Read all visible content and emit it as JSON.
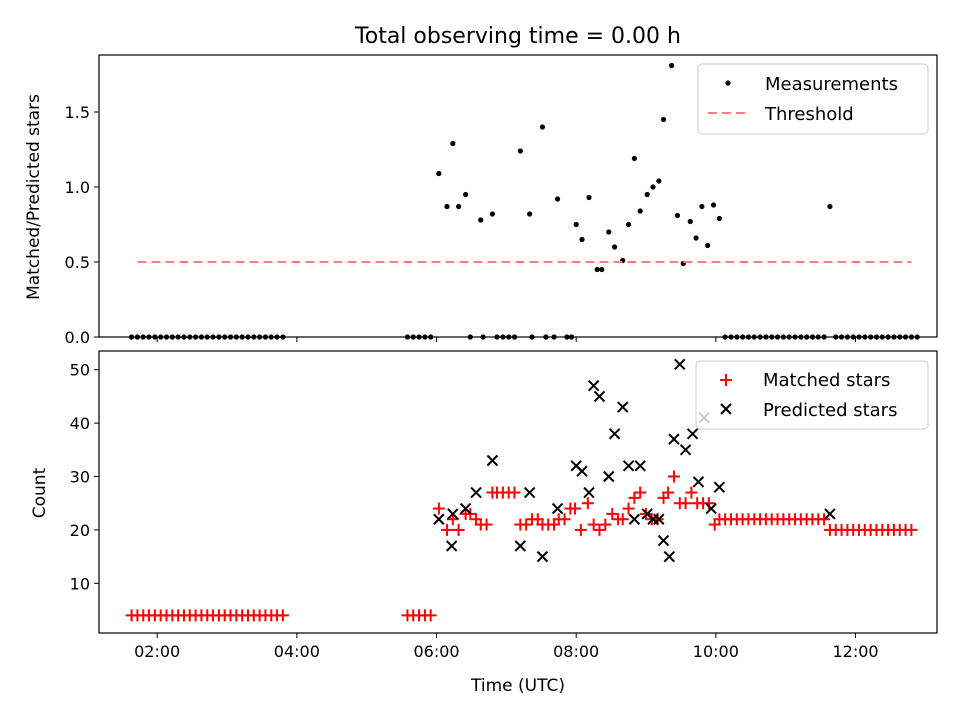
{
  "chart_data": [
    {
      "type": "scatter",
      "title": "Total observing time = 0.00 h",
      "xlabel": "",
      "ylabel": "Matched/Predicted stars",
      "xlim": [
        "01:10",
        "13:10"
      ],
      "ylim": [
        0,
        1.88
      ],
      "yticks": [
        "0.0",
        "0.5",
        "1.0",
        "1.5"
      ],
      "xticks": [
        "02:00",
        "04:00",
        "06:00",
        "08:00",
        "10:00",
        "12:00"
      ],
      "grid": false,
      "legend_position": "upper right",
      "series": [
        {
          "name": "Measurements",
          "marker": "dot",
          "color": "#000000",
          "points": [
            [
              "01:38",
              0
            ],
            [
              "01:43",
              0
            ],
            [
              "01:48",
              0
            ],
            [
              "01:53",
              0
            ],
            [
              "01:58",
              0
            ],
            [
              "02:03",
              0
            ],
            [
              "02:08",
              0
            ],
            [
              "02:13",
              0
            ],
            [
              "02:18",
              0
            ],
            [
              "02:23",
              0
            ],
            [
              "02:28",
              0
            ],
            [
              "02:33",
              0
            ],
            [
              "02:38",
              0
            ],
            [
              "02:43",
              0
            ],
            [
              "02:48",
              0
            ],
            [
              "02:53",
              0
            ],
            [
              "02:58",
              0
            ],
            [
              "03:03",
              0
            ],
            [
              "03:08",
              0
            ],
            [
              "03:13",
              0
            ],
            [
              "03:18",
              0
            ],
            [
              "03:23",
              0
            ],
            [
              "03:28",
              0
            ],
            [
              "03:33",
              0
            ],
            [
              "03:38",
              0
            ],
            [
              "03:43",
              0
            ],
            [
              "03:48",
              0
            ],
            [
              "05:35",
              0
            ],
            [
              "05:40",
              0
            ],
            [
              "05:45",
              0
            ],
            [
              "05:50",
              0
            ],
            [
              "05:55",
              0
            ],
            [
              "06:02",
              1.09
            ],
            [
              "06:09",
              0.87
            ],
            [
              "06:14",
              1.29
            ],
            [
              "06:19",
              0.87
            ],
            [
              "06:25",
              0.95
            ],
            [
              "06:29",
              0
            ],
            [
              "06:38",
              0.78
            ],
            [
              "06:40",
              0
            ],
            [
              "06:48",
              0.82
            ],
            [
              "06:52",
              0
            ],
            [
              "06:57",
              0
            ],
            [
              "07:02",
              0
            ],
            [
              "07:07",
              0
            ],
            [
              "07:12",
              1.24
            ],
            [
              "07:20",
              0.82
            ],
            [
              "07:22",
              0
            ],
            [
              "07:31",
              1.4
            ],
            [
              "07:34",
              0
            ],
            [
              "07:41",
              0
            ],
            [
              "07:44",
              0.92
            ],
            [
              "07:52",
              0
            ],
            [
              "07:56",
              0
            ],
            [
              "08:00",
              0.75
            ],
            [
              "08:05",
              0.65
            ],
            [
              "08:11",
              0.93
            ],
            [
              "08:18",
              0.45
            ],
            [
              "08:22",
              0.45
            ],
            [
              "08:28",
              0.7
            ],
            [
              "08:33",
              0.6
            ],
            [
              "08:40",
              0.51
            ],
            [
              "08:45",
              0.75
            ],
            [
              "08:50",
              1.19
            ],
            [
              "08:55",
              0.84
            ],
            [
              "09:01",
              0.95
            ],
            [
              "09:06",
              1.0
            ],
            [
              "09:11",
              1.04
            ],
            [
              "09:15",
              1.45
            ],
            [
              "09:22",
              1.81
            ],
            [
              "09:27",
              0.81
            ],
            [
              "09:32",
              0.49
            ],
            [
              "09:38",
              0.77
            ],
            [
              "09:43",
              0.66
            ],
            [
              "09:48",
              0.87
            ],
            [
              "09:53",
              0.61
            ],
            [
              "09:58",
              0.88
            ],
            [
              "10:03",
              0.79
            ],
            [
              "10:08",
              0
            ],
            [
              "10:13",
              0
            ],
            [
              "10:18",
              0
            ],
            [
              "10:23",
              0
            ],
            [
              "10:28",
              0
            ],
            [
              "10:33",
              0
            ],
            [
              "10:38",
              0
            ],
            [
              "10:43",
              0
            ],
            [
              "10:48",
              0
            ],
            [
              "10:53",
              0
            ],
            [
              "10:58",
              0
            ],
            [
              "11:03",
              0
            ],
            [
              "11:08",
              0
            ],
            [
              "11:13",
              0
            ],
            [
              "11:18",
              0
            ],
            [
              "11:23",
              0
            ],
            [
              "11:28",
              0
            ],
            [
              "11:33",
              0
            ],
            [
              "11:38",
              0.87
            ],
            [
              "11:43",
              0
            ],
            [
              "11:48",
              0
            ],
            [
              "11:53",
              0
            ],
            [
              "11:58",
              0
            ],
            [
              "12:03",
              0
            ],
            [
              "12:08",
              0
            ],
            [
              "12:13",
              0
            ],
            [
              "12:18",
              0
            ],
            [
              "12:23",
              0
            ],
            [
              "12:28",
              0
            ],
            [
              "12:33",
              0
            ],
            [
              "12:38",
              0
            ],
            [
              "12:43",
              0
            ],
            [
              "12:48",
              0
            ],
            [
              "12:53",
              0
            ]
          ]
        },
        {
          "name": "Threshold",
          "marker": "dashed-line",
          "color": "#ff7f7f",
          "points": [
            [
              "01:43",
              0.5
            ],
            [
              "12:48",
              0.5
            ]
          ]
        }
      ]
    },
    {
      "type": "scatter",
      "title": "",
      "xlabel": "Time (UTC)",
      "ylabel": "Count",
      "xlim": [
        "01:10",
        "13:10"
      ],
      "ylim": [
        0.7,
        53.5
      ],
      "yticks": [
        "10",
        "20",
        "30",
        "40",
        "50"
      ],
      "xticks": [
        "02:00",
        "04:00",
        "06:00",
        "08:00",
        "10:00",
        "12:00"
      ],
      "grid": false,
      "legend_position": "upper right",
      "series": [
        {
          "name": "Matched stars",
          "marker": "plus",
          "color": "#ff0000",
          "points": [
            [
              "01:38",
              4
            ],
            [
              "01:43",
              4
            ],
            [
              "01:48",
              4
            ],
            [
              "01:53",
              4
            ],
            [
              "01:58",
              4
            ],
            [
              "02:03",
              4
            ],
            [
              "02:08",
              4
            ],
            [
              "02:13",
              4
            ],
            [
              "02:18",
              4
            ],
            [
              "02:23",
              4
            ],
            [
              "02:28",
              4
            ],
            [
              "02:33",
              4
            ],
            [
              "02:38",
              4
            ],
            [
              "02:43",
              4
            ],
            [
              "02:48",
              4
            ],
            [
              "02:53",
              4
            ],
            [
              "02:58",
              4
            ],
            [
              "03:03",
              4
            ],
            [
              "03:08",
              4
            ],
            [
              "03:13",
              4
            ],
            [
              "03:18",
              4
            ],
            [
              "03:23",
              4
            ],
            [
              "03:28",
              4
            ],
            [
              "03:33",
              4
            ],
            [
              "03:38",
              4
            ],
            [
              "03:43",
              4
            ],
            [
              "03:48",
              4
            ],
            [
              "05:35",
              4
            ],
            [
              "05:40",
              4
            ],
            [
              "05:45",
              4
            ],
            [
              "05:50",
              4
            ],
            [
              "05:55",
              4
            ],
            [
              "06:02",
              24
            ],
            [
              "06:09",
              20
            ],
            [
              "06:14",
              22
            ],
            [
              "06:19",
              20
            ],
            [
              "06:25",
              23
            ],
            [
              "06:29",
              23
            ],
            [
              "06:34",
              22
            ],
            [
              "06:38",
              21
            ],
            [
              "06:43",
              21
            ],
            [
              "06:48",
              27
            ],
            [
              "06:52",
              27
            ],
            [
              "06:57",
              27
            ],
            [
              "07:02",
              27
            ],
            [
              "07:07",
              27
            ],
            [
              "07:12",
              21
            ],
            [
              "07:17",
              21
            ],
            [
              "07:22",
              22
            ],
            [
              "07:27",
              22
            ],
            [
              "07:31",
              21
            ],
            [
              "07:36",
              21
            ],
            [
              "07:41",
              21
            ],
            [
              "07:45",
              22
            ],
            [
              "07:50",
              22
            ],
            [
              "07:55",
              24
            ],
            [
              "07:59",
              24
            ],
            [
              "08:04",
              20
            ],
            [
              "08:10",
              25
            ],
            [
              "08:15",
              21
            ],
            [
              "08:20",
              20
            ],
            [
              "08:25",
              21
            ],
            [
              "08:31",
              23
            ],
            [
              "08:36",
              22
            ],
            [
              "08:40",
              22
            ],
            [
              "08:45",
              24
            ],
            [
              "08:50",
              26
            ],
            [
              "08:55",
              27
            ],
            [
              "09:00",
              23
            ],
            [
              "09:05",
              22
            ],
            [
              "09:10",
              22
            ],
            [
              "09:15",
              26
            ],
            [
              "09:19",
              27
            ],
            [
              "09:24",
              30
            ],
            [
              "09:29",
              25
            ],
            [
              "09:34",
              25
            ],
            [
              "09:39",
              27
            ],
            [
              "09:44",
              25
            ],
            [
              "09:49",
              25
            ],
            [
              "09:54",
              25
            ],
            [
              "09:59",
              21
            ],
            [
              "10:03",
              22
            ],
            [
              "10:08",
              22
            ],
            [
              "10:13",
              22
            ],
            [
              "10:18",
              22
            ],
            [
              "10:23",
              22
            ],
            [
              "10:28",
              22
            ],
            [
              "10:33",
              22
            ],
            [
              "10:38",
              22
            ],
            [
              "10:43",
              22
            ],
            [
              "10:48",
              22
            ],
            [
              "10:53",
              22
            ],
            [
              "10:58",
              22
            ],
            [
              "11:03",
              22
            ],
            [
              "11:08",
              22
            ],
            [
              "11:13",
              22
            ],
            [
              "11:18",
              22
            ],
            [
              "11:23",
              22
            ],
            [
              "11:28",
              22
            ],
            [
              "11:33",
              22
            ],
            [
              "11:38",
              20
            ],
            [
              "11:43",
              20
            ],
            [
              "11:48",
              20
            ],
            [
              "11:53",
              20
            ],
            [
              "11:58",
              20
            ],
            [
              "12:03",
              20
            ],
            [
              "12:08",
              20
            ],
            [
              "12:13",
              20
            ],
            [
              "12:18",
              20
            ],
            [
              "12:23",
              20
            ],
            [
              "12:28",
              20
            ],
            [
              "12:33",
              20
            ],
            [
              "12:38",
              20
            ],
            [
              "12:43",
              20
            ],
            [
              "12:48",
              20
            ]
          ]
        },
        {
          "name": "Predicted stars",
          "marker": "x",
          "color": "#000000",
          "points": [
            [
              "06:02",
              22
            ],
            [
              "06:13",
              17
            ],
            [
              "06:14",
              23
            ],
            [
              "06:25",
              24
            ],
            [
              "06:34",
              27
            ],
            [
              "06:48",
              33
            ],
            [
              "07:12",
              17
            ],
            [
              "07:20",
              27
            ],
            [
              "07:31",
              15
            ],
            [
              "07:44",
              24
            ],
            [
              "08:00",
              32
            ],
            [
              "08:05",
              31
            ],
            [
              "08:11",
              27
            ],
            [
              "08:15",
              47
            ],
            [
              "08:20",
              45
            ],
            [
              "08:28",
              30
            ],
            [
              "08:33",
              38
            ],
            [
              "08:40",
              43
            ],
            [
              "08:45",
              32
            ],
            [
              "08:50",
              22
            ],
            [
              "08:55",
              32
            ],
            [
              "09:01",
              23
            ],
            [
              "09:06",
              22
            ],
            [
              "09:11",
              22
            ],
            [
              "09:15",
              18
            ],
            [
              "09:20",
              15
            ],
            [
              "09:24",
              37
            ],
            [
              "09:29",
              51
            ],
            [
              "09:34",
              35
            ],
            [
              "09:40",
              38
            ],
            [
              "09:45",
              29
            ],
            [
              "09:50",
              41
            ],
            [
              "09:56",
              24
            ],
            [
              "10:03",
              28
            ],
            [
              "11:38",
              23
            ]
          ]
        }
      ]
    }
  ]
}
